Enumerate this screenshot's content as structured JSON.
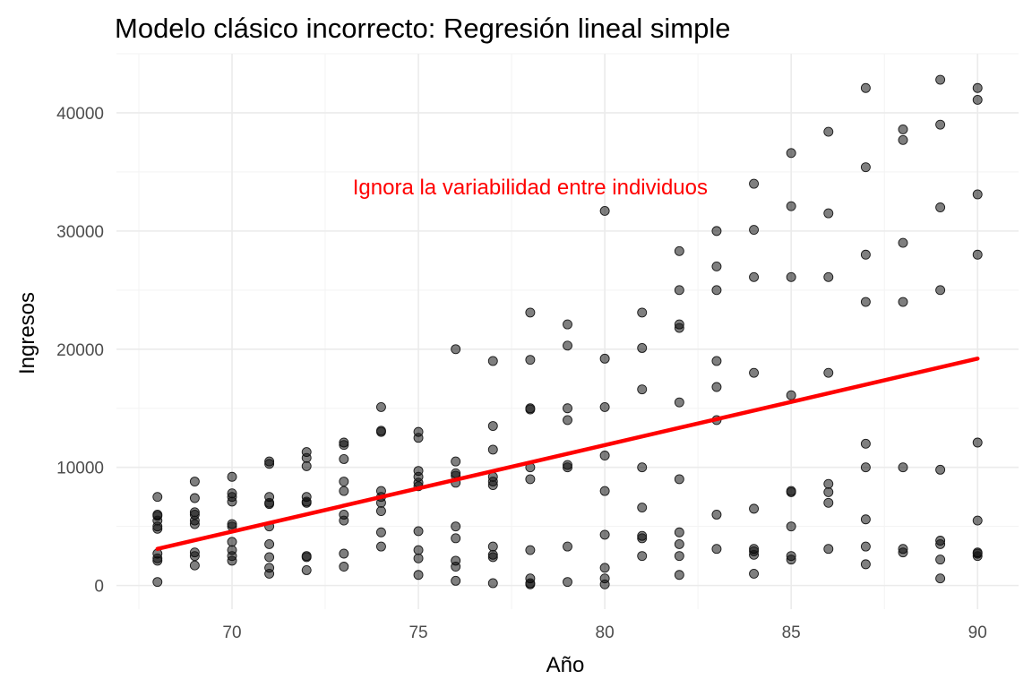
{
  "chart_data": {
    "type": "scatter",
    "title": "Modelo clásico incorrecto: Regresión lineal simple",
    "xlabel": "Año",
    "ylabel": "Ingresos",
    "xlim": [
      66.9,
      91.1
    ],
    "ylim": [
      -2000,
      45000
    ],
    "x_ticks": [
      70,
      75,
      80,
      85,
      90
    ],
    "y_ticks": [
      0,
      10000,
      20000,
      30000,
      40000
    ],
    "x_tick_labels": [
      "70",
      "75",
      "80",
      "85",
      "90"
    ],
    "y_tick_labels": [
      "0",
      "10000",
      "20000",
      "30000",
      "40000"
    ],
    "grid": true,
    "legend": "none",
    "point_color": "#000000",
    "point_opacity": 0.5,
    "line_color": "#ff0000",
    "annotation": {
      "text": "Ignora la variabilidad entre individuos",
      "x": 78,
      "y": 33700,
      "color": "#ff0000"
    },
    "fit_line": {
      "x": [
        68,
        90
      ],
      "y": [
        3100,
        19200
      ]
    },
    "points": [
      [
        68,
        7500
      ],
      [
        68,
        6000
      ],
      [
        68,
        5900
      ],
      [
        68,
        5500
      ],
      [
        68,
        5000
      ],
      [
        68,
        4800
      ],
      [
        68,
        2700
      ],
      [
        68,
        2300
      ],
      [
        68,
        2100
      ],
      [
        68,
        300
      ],
      [
        69,
        8800
      ],
      [
        69,
        7400
      ],
      [
        69,
        6200
      ],
      [
        69,
        6000
      ],
      [
        69,
        5500
      ],
      [
        69,
        5200
      ],
      [
        69,
        2800
      ],
      [
        69,
        2500
      ],
      [
        69,
        1700
      ],
      [
        70,
        9200
      ],
      [
        70,
        7800
      ],
      [
        70,
        7500
      ],
      [
        70,
        7100
      ],
      [
        70,
        5200
      ],
      [
        70,
        5000
      ],
      [
        70,
        3700
      ],
      [
        70,
        3000
      ],
      [
        70,
        2500
      ],
      [
        70,
        2100
      ],
      [
        71,
        10500
      ],
      [
        71,
        10300
      ],
      [
        71,
        7500
      ],
      [
        71,
        7000
      ],
      [
        71,
        6900
      ],
      [
        71,
        5000
      ],
      [
        71,
        3500
      ],
      [
        71,
        2400
      ],
      [
        71,
        1500
      ],
      [
        71,
        1000
      ],
      [
        72,
        11300
      ],
      [
        72,
        10800
      ],
      [
        72,
        10100
      ],
      [
        72,
        7500
      ],
      [
        72,
        7100
      ],
      [
        72,
        7000
      ],
      [
        72,
        2500
      ],
      [
        72,
        2400
      ],
      [
        72,
        1300
      ],
      [
        73,
        12100
      ],
      [
        73,
        11900
      ],
      [
        73,
        10700
      ],
      [
        73,
        8800
      ],
      [
        73,
        8000
      ],
      [
        73,
        6000
      ],
      [
        73,
        5500
      ],
      [
        73,
        2700
      ],
      [
        73,
        1600
      ],
      [
        74,
        15100
      ],
      [
        74,
        13100
      ],
      [
        74,
        13000
      ],
      [
        74,
        8000
      ],
      [
        74,
        7500
      ],
      [
        74,
        7000
      ],
      [
        74,
        6300
      ],
      [
        74,
        4500
      ],
      [
        74,
        3300
      ],
      [
        75,
        13000
      ],
      [
        75,
        12500
      ],
      [
        75,
        9700
      ],
      [
        75,
        9200
      ],
      [
        75,
        8700
      ],
      [
        75,
        8400
      ],
      [
        75,
        4600
      ],
      [
        75,
        3000
      ],
      [
        75,
        2300
      ],
      [
        75,
        900
      ],
      [
        76,
        20000
      ],
      [
        76,
        10500
      ],
      [
        76,
        9500
      ],
      [
        76,
        9300
      ],
      [
        76,
        8700
      ],
      [
        76,
        5000
      ],
      [
        76,
        4000
      ],
      [
        76,
        2100
      ],
      [
        76,
        1600
      ],
      [
        76,
        400
      ],
      [
        77,
        19000
      ],
      [
        77,
        13500
      ],
      [
        77,
        11500
      ],
      [
        77,
        9200
      ],
      [
        77,
        8800
      ],
      [
        77,
        8500
      ],
      [
        77,
        3300
      ],
      [
        77,
        2600
      ],
      [
        77,
        2400
      ],
      [
        77,
        200
      ],
      [
        78,
        23100
      ],
      [
        78,
        19100
      ],
      [
        78,
        15000
      ],
      [
        78,
        14900
      ],
      [
        78,
        10000
      ],
      [
        78,
        9000
      ],
      [
        78,
        3000
      ],
      [
        78,
        600
      ],
      [
        78,
        200
      ],
      [
        78,
        100
      ],
      [
        79,
        22100
      ],
      [
        79,
        20300
      ],
      [
        79,
        15000
      ],
      [
        79,
        14000
      ],
      [
        79,
        10200
      ],
      [
        79,
        10000
      ],
      [
        79,
        3300
      ],
      [
        79,
        300
      ],
      [
        80,
        31700
      ],
      [
        80,
        19200
      ],
      [
        80,
        15100
      ],
      [
        80,
        11000
      ],
      [
        80,
        8000
      ],
      [
        80,
        4300
      ],
      [
        80,
        1500
      ],
      [
        80,
        600
      ],
      [
        80,
        100
      ],
      [
        81,
        23100
      ],
      [
        81,
        20100
      ],
      [
        81,
        16600
      ],
      [
        81,
        10000
      ],
      [
        81,
        6600
      ],
      [
        81,
        4200
      ],
      [
        81,
        4000
      ],
      [
        81,
        2500
      ],
      [
        82,
        28300
      ],
      [
        82,
        25000
      ],
      [
        82,
        22100
      ],
      [
        82,
        21800
      ],
      [
        82,
        15500
      ],
      [
        82,
        9000
      ],
      [
        82,
        4500
      ],
      [
        82,
        3500
      ],
      [
        82,
        2500
      ],
      [
        82,
        900
      ],
      [
        83,
        30000
      ],
      [
        83,
        27000
      ],
      [
        83,
        25000
      ],
      [
        83,
        19000
      ],
      [
        83,
        16800
      ],
      [
        83,
        14000
      ],
      [
        83,
        6000
      ],
      [
        83,
        3100
      ],
      [
        84,
        34000
      ],
      [
        84,
        30100
      ],
      [
        84,
        26100
      ],
      [
        84,
        18000
      ],
      [
        84,
        6500
      ],
      [
        84,
        3100
      ],
      [
        84,
        2900
      ],
      [
        84,
        2600
      ],
      [
        84,
        1000
      ],
      [
        85,
        36600
      ],
      [
        85,
        32100
      ],
      [
        85,
        26100
      ],
      [
        85,
        16100
      ],
      [
        85,
        8000
      ],
      [
        85,
        7900
      ],
      [
        85,
        5000
      ],
      [
        85,
        2500
      ],
      [
        85,
        2200
      ],
      [
        86,
        38400
      ],
      [
        86,
        31500
      ],
      [
        86,
        26100
      ],
      [
        86,
        18000
      ],
      [
        86,
        8600
      ],
      [
        86,
        7900
      ],
      [
        86,
        7000
      ],
      [
        86,
        3100
      ],
      [
        87,
        42100
      ],
      [
        87,
        35400
      ],
      [
        87,
        28000
      ],
      [
        87,
        24000
      ],
      [
        87,
        12000
      ],
      [
        87,
        10000
      ],
      [
        87,
        5600
      ],
      [
        87,
        3300
      ],
      [
        87,
        1800
      ],
      [
        88,
        38600
      ],
      [
        88,
        37700
      ],
      [
        88,
        29000
      ],
      [
        88,
        24000
      ],
      [
        88,
        10000
      ],
      [
        88,
        3100
      ],
      [
        88,
        2800
      ],
      [
        89,
        42800
      ],
      [
        89,
        39000
      ],
      [
        89,
        32000
      ],
      [
        89,
        25000
      ],
      [
        89,
        9800
      ],
      [
        89,
        3800
      ],
      [
        89,
        3500
      ],
      [
        89,
        2200
      ],
      [
        89,
        600
      ],
      [
        90,
        42100
      ],
      [
        90,
        41100
      ],
      [
        90,
        33100
      ],
      [
        90,
        28000
      ],
      [
        90,
        12100
      ],
      [
        90,
        5500
      ],
      [
        90,
        2800
      ],
      [
        90,
        2700
      ],
      [
        90,
        2500
      ]
    ]
  }
}
